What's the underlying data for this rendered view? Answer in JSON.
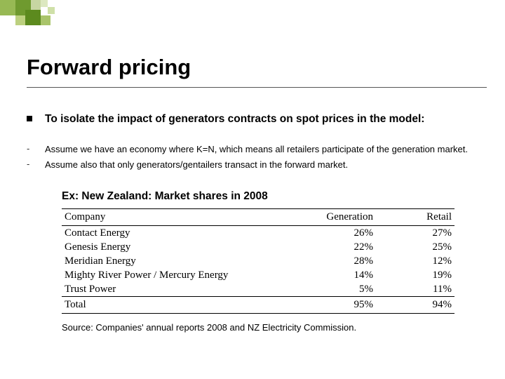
{
  "title": "Forward pricing",
  "lead": "To isolate the impact of generators contracts on spot prices in the model:",
  "bullets": [
    "Assume we have an economy where K=N, which means all retailers participate of the generation market.",
    "Assume also that only generators/gentailers transact in the forward market."
  ],
  "subtitle": "Ex: New Zealand: Market shares in 2008",
  "table": {
    "columns": [
      "Company",
      "Generation",
      "Retail"
    ],
    "rows": [
      [
        "Contact Energy",
        "26%",
        "27%"
      ],
      [
        "Genesis Energy",
        "22%",
        "25%"
      ],
      [
        "Meridian Energy",
        "28%",
        "12%"
      ],
      [
        "Mighty River Power / Mercury Energy",
        "14%",
        "19%"
      ],
      [
        "Trust Power",
        "5%",
        "11%"
      ]
    ],
    "total": [
      "Total",
      "95%",
      "94%"
    ],
    "font_family": "Times New Roman",
    "border_color": "#000000",
    "body_fontsize": 15
  },
  "source": "Source: Companies' annual reports 2008 and NZ Electricity Commission.",
  "styling": {
    "background_color": "#ffffff",
    "title_fontsize": 31,
    "title_weight": "bold",
    "lead_fontsize": 15.5,
    "bullet_fontsize": 13,
    "subtitle_fontsize": 15.5,
    "source_fontsize": 13,
    "rule_color": "#555555",
    "deco_colors": [
      "#97b954",
      "#6f9a2f",
      "#c7d6a2",
      "#bcd07f",
      "#5c8a1e",
      "#a9c46a",
      "#dce8c0",
      "#cfe0a8"
    ]
  }
}
